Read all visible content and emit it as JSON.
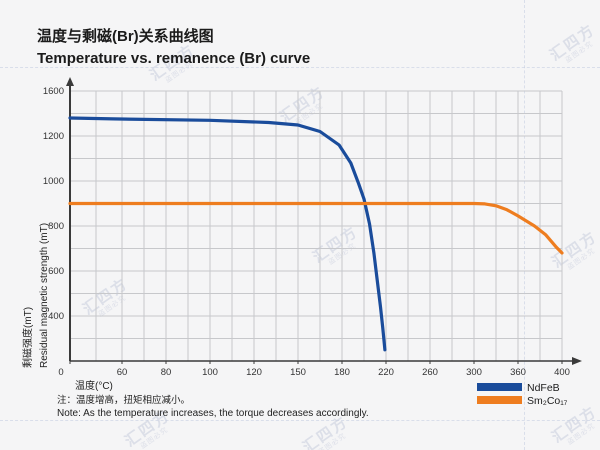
{
  "header": {
    "title_zh": "温度与剩磁(Br)关系曲线图",
    "title_en": "Temperature vs. remanence (Br) curve"
  },
  "chart_data": {
    "type": "line",
    "xlabel": "温度(°C)",
    "ylabel_zh": "剩磁强度(mT)",
    "ylabel_en": "Residual magnetic strength (mT)",
    "x_ticks": [
      0,
      60,
      80,
      100,
      120,
      150,
      180,
      220,
      260,
      300,
      360,
      400
    ],
    "y_ticks": [
      0,
      400,
      600,
      800,
      1000,
      1200,
      1600
    ],
    "x_range": [
      0,
      400
    ],
    "y_range": [
      0,
      1600
    ],
    "grid": true,
    "legend_position": "bottom-right",
    "series": [
      {
        "name": "NdFeB",
        "color": "#1a4c9b",
        "points": [
          [
            0,
            1360
          ],
          [
            50,
            1352
          ],
          [
            100,
            1340
          ],
          [
            130,
            1320
          ],
          [
            150,
            1298
          ],
          [
            165,
            1240
          ],
          [
            178,
            1160
          ],
          [
            188,
            1080
          ],
          [
            195,
            990
          ],
          [
            200,
            920
          ],
          [
            205,
            810
          ],
          [
            209,
            680
          ],
          [
            212,
            560
          ],
          [
            215,
            440
          ],
          [
            217,
            300
          ],
          [
            219,
            100
          ]
        ]
      },
      {
        "name": "Sm₂Co₁₇",
        "color": "#ee7d1f",
        "points": [
          [
            0,
            900
          ],
          [
            100,
            900
          ],
          [
            200,
            900
          ],
          [
            300,
            900
          ],
          [
            315,
            898
          ],
          [
            330,
            890
          ],
          [
            345,
            872
          ],
          [
            360,
            845
          ],
          [
            375,
            800
          ],
          [
            385,
            762
          ],
          [
            395,
            705
          ],
          [
            400,
            680
          ]
        ]
      }
    ]
  },
  "notes": {
    "zh": "注：温度增高，扭矩相应减小。",
    "en": "Note: As the temperature increases, the torque decreases accordingly."
  },
  "watermark": {
    "brand": "汇四方",
    "caption": "盗图必究"
  },
  "colors": {
    "ndfeb": "#1a4c9b",
    "sm2co17": "#ee7d1f",
    "background": "#f5f5f6",
    "grid": "#c7c8cb",
    "axis": "#3a3a3a"
  }
}
